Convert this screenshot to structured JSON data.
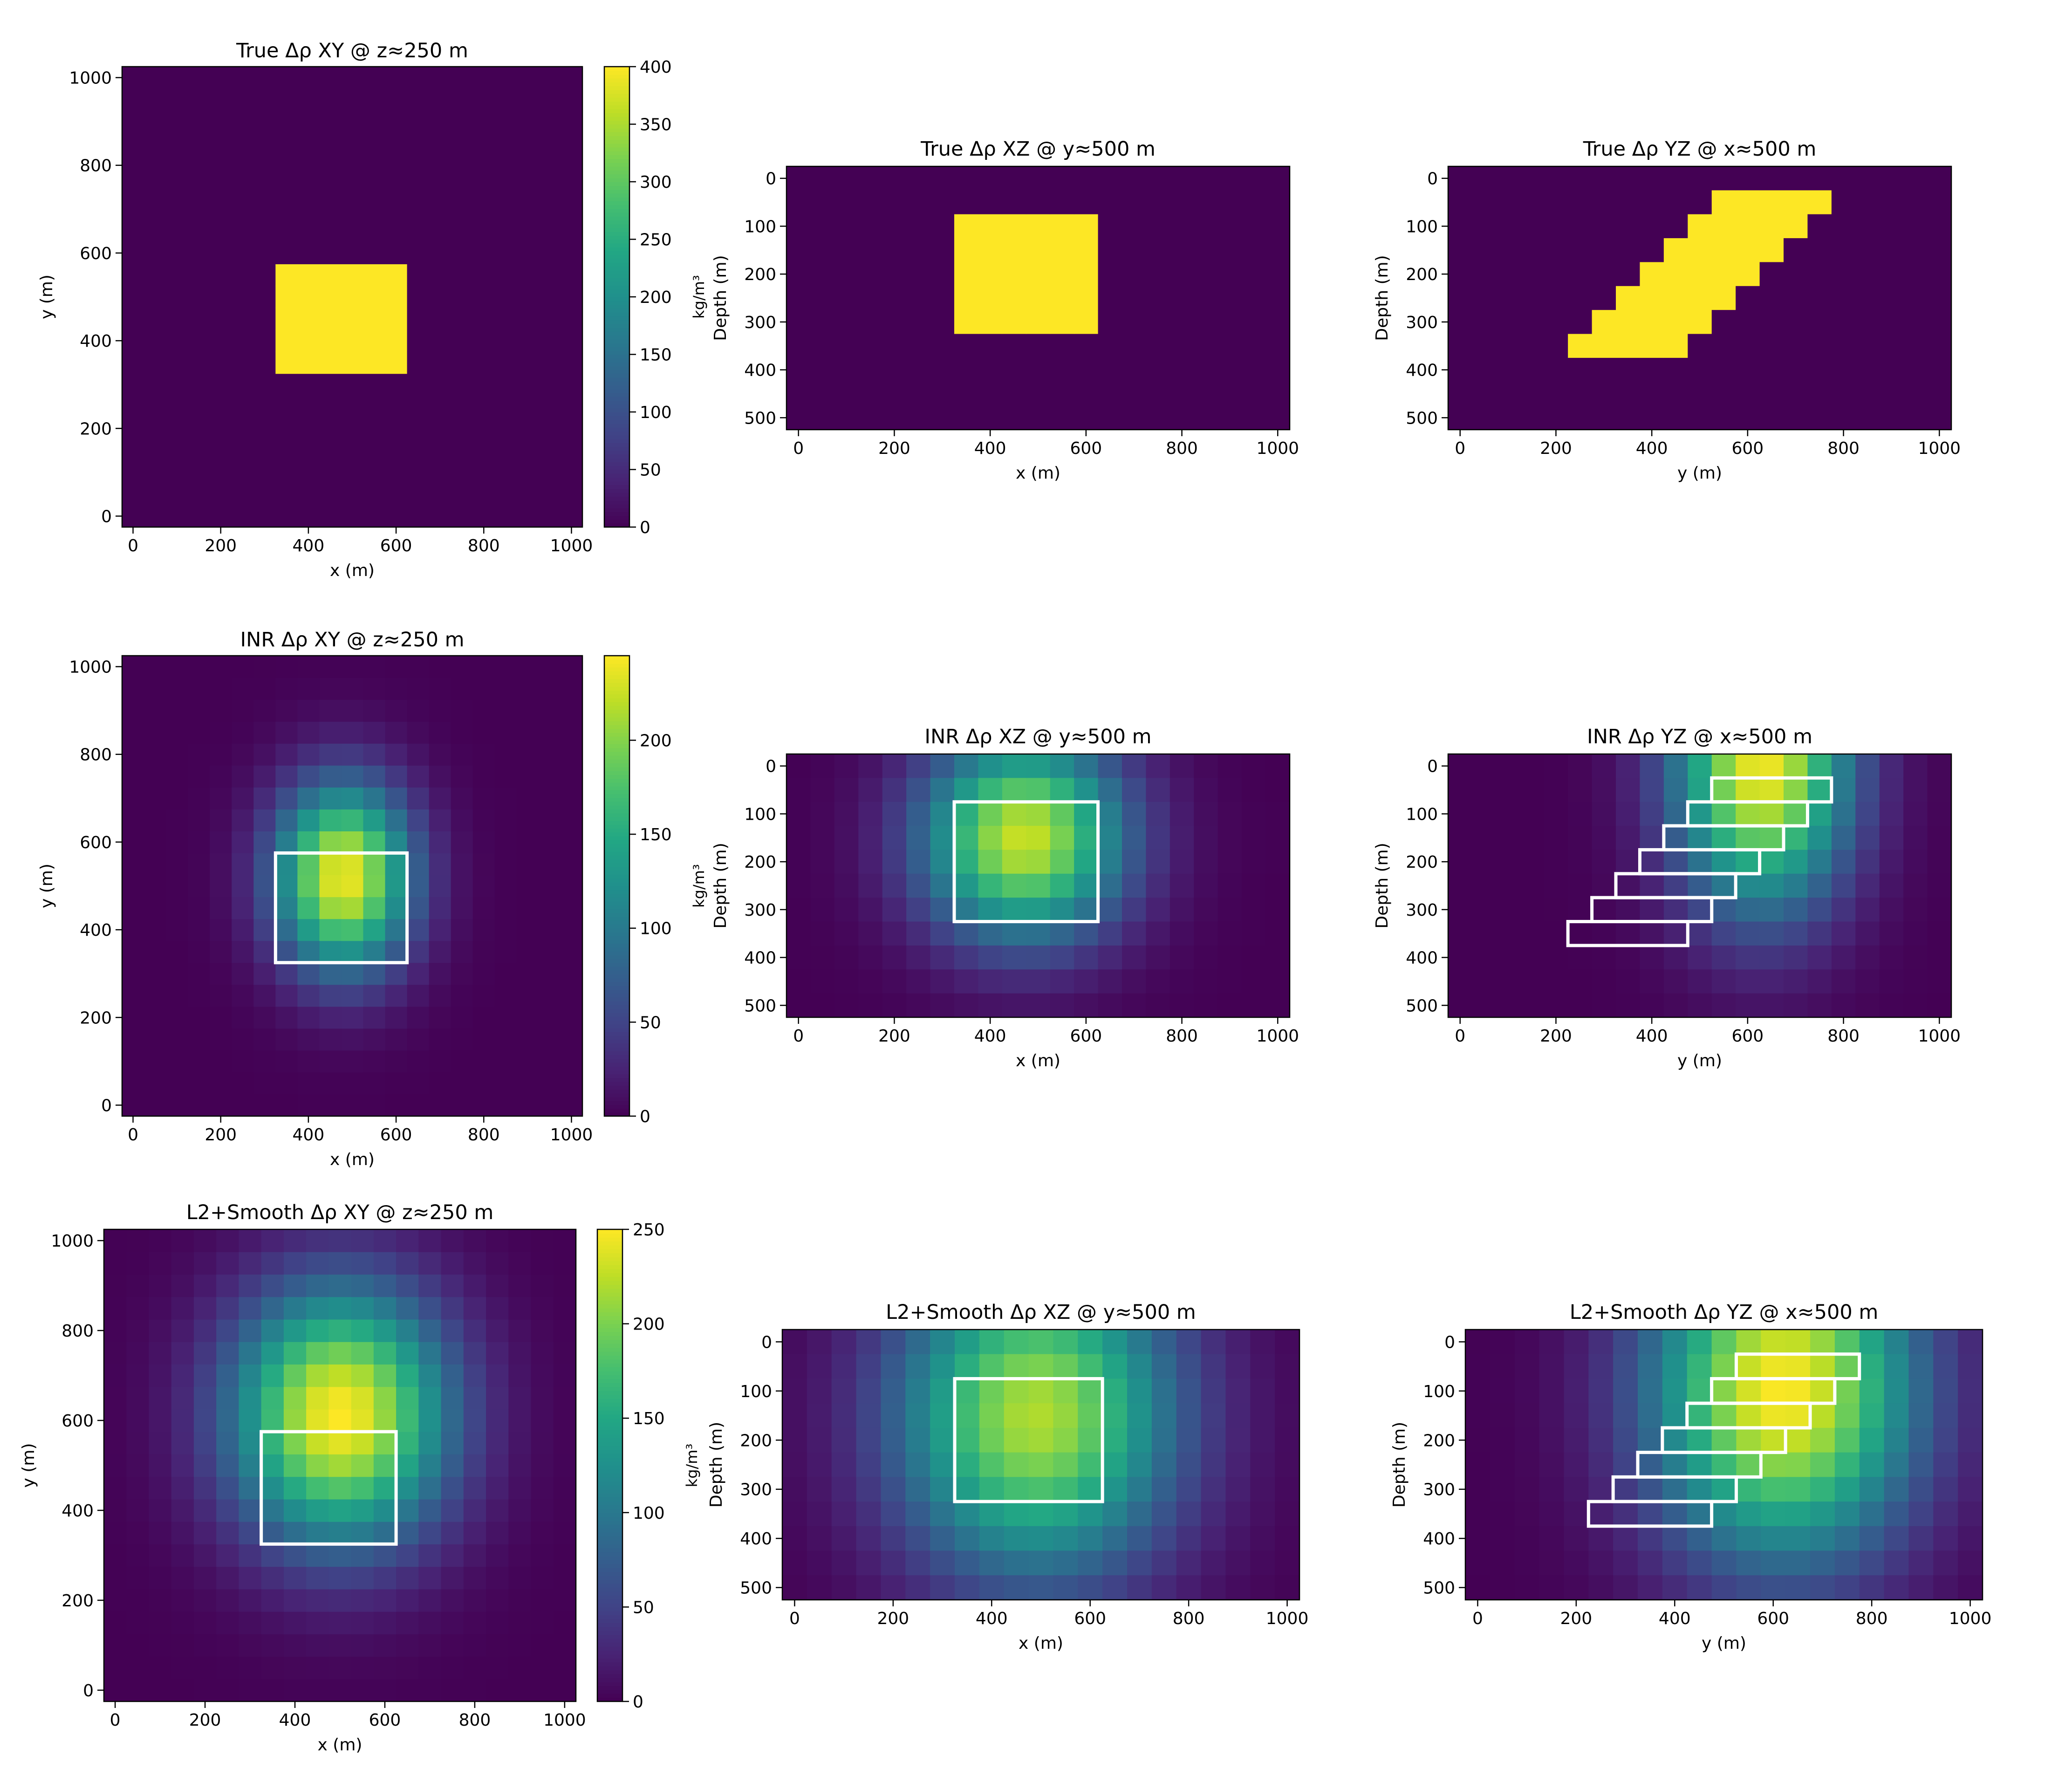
{
  "chart_data": [
    {
      "type": "heatmap",
      "row": "true",
      "view": "XY",
      "title": "True Δρ XY @ z≈250 m",
      "xlabel": "x (m)",
      "ylabel": "y (m)",
      "xlim": [
        -25,
        1025
      ],
      "ylim": [
        -25,
        1025
      ],
      "xticks": [
        0,
        200,
        400,
        600,
        800,
        1000
      ],
      "yticks": [
        0,
        200,
        400,
        600,
        800,
        1000
      ],
      "colorbar": {
        "label": "kg/m³",
        "range": [
          0,
          400
        ],
        "ticks": [
          0,
          50,
          100,
          150,
          200,
          250,
          300,
          350,
          400
        ]
      },
      "body": {
        "x_range": [
          325,
          625
        ],
        "y_range": [
          325,
          575
        ],
        "density_contrast": 400
      },
      "outline": false
    },
    {
      "type": "heatmap",
      "row": "true",
      "view": "XZ",
      "title": "True Δρ XZ @ y≈500 m",
      "xlabel": "x (m)",
      "ylabel": "Depth (m)",
      "xlim": [
        -25,
        1025
      ],
      "ylim": [
        525,
        -25
      ],
      "xticks": [
        0,
        200,
        400,
        600,
        800,
        1000
      ],
      "yticks": [
        0,
        100,
        200,
        300,
        400,
        500
      ],
      "body": {
        "x_range": [
          325,
          625
        ],
        "z_range": [
          75,
          325
        ],
        "density_contrast": 400
      },
      "outline": false
    },
    {
      "type": "heatmap",
      "row": "true",
      "view": "YZ",
      "title": "True Δρ YZ @ x≈500 m",
      "xlabel": "y (m)",
      "ylabel": "Depth (m)",
      "xlim": [
        -25,
        1025
      ],
      "ylim": [
        525,
        -25
      ],
      "xticks": [
        0,
        200,
        400,
        600,
        800,
        1000
      ],
      "yticks": [
        0,
        100,
        200,
        300,
        400,
        500
      ],
      "body_steps": [
        {
          "y_range": [
            525,
            775
          ],
          "z_range": [
            25,
            75
          ]
        },
        {
          "y_range": [
            475,
            725
          ],
          "z_range": [
            75,
            125
          ]
        },
        {
          "y_range": [
            425,
            675
          ],
          "z_range": [
            125,
            175
          ]
        },
        {
          "y_range": [
            375,
            625
          ],
          "z_range": [
            175,
            225
          ]
        },
        {
          "y_range": [
            325,
            575
          ],
          "z_range": [
            225,
            275
          ]
        },
        {
          "y_range": [
            275,
            525
          ],
          "z_range": [
            275,
            325
          ]
        },
        {
          "y_range": [
            225,
            475
          ],
          "z_range": [
            325,
            375
          ]
        }
      ],
      "density_contrast": 400,
      "outline": false
    },
    {
      "type": "heatmap",
      "row": "inr",
      "view": "XY",
      "title": "INR Δρ XY @ z≈250 m",
      "xlabel": "x (m)",
      "ylabel": "y (m)",
      "xlim": [
        -25,
        1025
      ],
      "ylim": [
        -25,
        1025
      ],
      "xticks": [
        0,
        200,
        400,
        600,
        800,
        1000
      ],
      "yticks": [
        0,
        200,
        400,
        600,
        800,
        1000
      ],
      "colorbar": {
        "label": "kg/m³",
        "range": [
          0,
          245
        ],
        "ticks": [
          0,
          50,
          100,
          150,
          200
        ]
      },
      "peak": 240,
      "blob": {
        "cx": 480,
        "cy": 520,
        "sx": 110,
        "sy": 150
      },
      "outline": true
    },
    {
      "type": "heatmap",
      "row": "inr",
      "view": "XZ",
      "title": "INR Δρ XZ @ y≈500 m",
      "xlabel": "x (m)",
      "ylabel": "Depth (m)",
      "xlim": [
        -25,
        1025
      ],
      "ylim": [
        525,
        -25
      ],
      "xticks": [
        0,
        200,
        400,
        600,
        800,
        1000
      ],
      "yticks": [
        0,
        100,
        200,
        300,
        400,
        500
      ],
      "peak": 225,
      "blob": {
        "cx": 470,
        "cz": 150,
        "sx": 150,
        "sz": 150
      },
      "outline": true
    },
    {
      "type": "heatmap",
      "row": "inr",
      "view": "YZ",
      "title": "INR Δρ YZ @ x≈500 m",
      "xlabel": "y (m)",
      "ylabel": "Depth (m)",
      "xlim": [
        -25,
        1025
      ],
      "ylim": [
        525,
        -25
      ],
      "xticks": [
        0,
        200,
        400,
        600,
        800,
        1000
      ],
      "yticks": [
        0,
        100,
        200,
        300,
        400,
        500
      ],
      "peak": 240,
      "blob": {
        "cy": 630,
        "cz": 0,
        "sy": 130,
        "sz": 210
      },
      "outline": true
    },
    {
      "type": "heatmap",
      "row": "l2",
      "view": "XY",
      "title": "L2+Smooth Δρ XY @ z≈250 m",
      "xlabel": "x (m)",
      "ylabel": "y (m)",
      "xlim": [
        -25,
        1025
      ],
      "ylim": [
        -25,
        1025
      ],
      "xticks": [
        0,
        200,
        400,
        600,
        800,
        1000
      ],
      "yticks": [
        0,
        200,
        400,
        600,
        800,
        1000
      ],
      "colorbar": {
        "label": "kg/m³",
        "range": [
          0,
          250
        ],
        "ticks": [
          0,
          50,
          100,
          150,
          200,
          250
        ]
      },
      "peak": 250,
      "blob": {
        "cx": 500,
        "cy": 610,
        "sx": 170,
        "sy": 200
      },
      "outline": true
    },
    {
      "type": "heatmap",
      "row": "l2",
      "view": "XZ",
      "title": "L2+Smooth Δρ XZ @ y≈500 m",
      "xlabel": "x (m)",
      "ylabel": "Depth (m)",
      "xlim": [
        -25,
        1025
      ],
      "ylim": [
        525,
        -25
      ],
      "xticks": [
        0,
        200,
        400,
        600,
        800,
        1000
      ],
      "yticks": [
        0,
        100,
        200,
        300,
        400,
        500
      ],
      "peak": 220,
      "blob": {
        "cx": 490,
        "cz": 150,
        "sx": 200,
        "sz": 230
      },
      "outline": true
    },
    {
      "type": "heatmap",
      "row": "l2",
      "view": "YZ",
      "title": "L2+Smooth Δρ YZ @ x≈500 m",
      "xlabel": "y (m)",
      "ylabel": "Depth (m)",
      "xlim": [
        -25,
        1025
      ],
      "ylim": [
        525,
        -25
      ],
      "xticks": [
        0,
        200,
        400,
        600,
        800,
        1000
      ],
      "yticks": [
        0,
        100,
        200,
        300,
        400,
        500
      ],
      "peak": 250,
      "blob": {
        "cy": 620,
        "cz": 100,
        "sy": 190,
        "sz": 240
      },
      "outline": true
    }
  ]
}
